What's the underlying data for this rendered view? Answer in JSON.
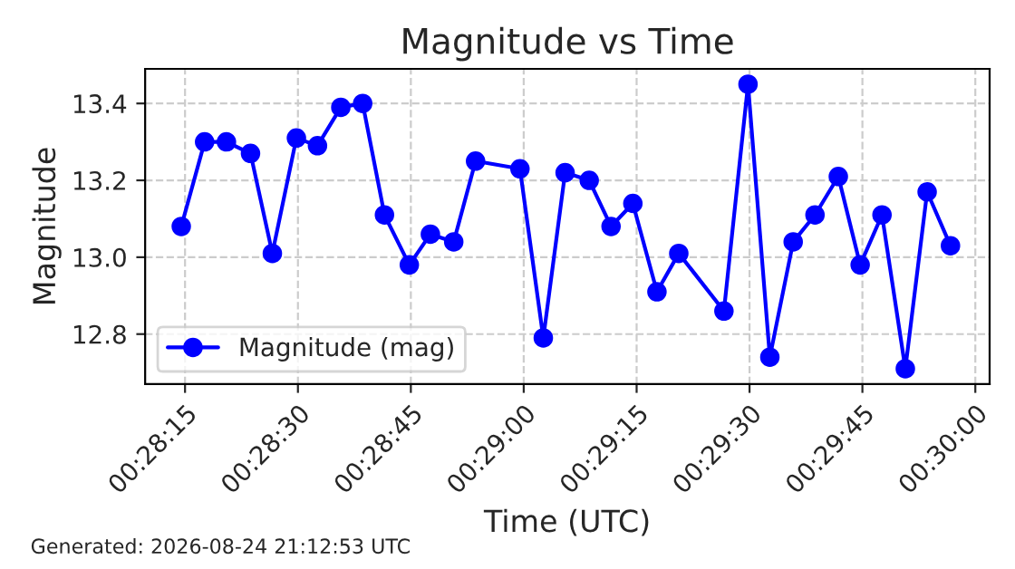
{
  "chart_data": {
    "type": "line",
    "title": "Magnitude vs Time",
    "xlabel": "Time (UTC)",
    "ylabel": "Magnitude",
    "x": [
      0.470694,
      0.471556,
      0.472361,
      0.47325,
      0.474056,
      0.474944,
      0.475722,
      0.476583,
      0.477389,
      0.478194,
      0.479111,
      0.479889,
      0.48075,
      0.481556,
      0.483194,
      0.484056,
      0.484861,
      0.48575,
      0.486556,
      0.487361,
      0.48825,
      0.489056,
      0.490722,
      0.491611,
      0.492417,
      0.493278,
      0.494083,
      0.494944,
      0.49575,
      0.496556,
      0.497417,
      0.498222,
      0.499083
    ],
    "series": [
      {
        "name": "Magnitude (mag)",
        "color": "#0000ff",
        "values": [
          13.08,
          13.3,
          13.3,
          13.27,
          13.01,
          13.31,
          13.29,
          13.39,
          13.4,
          13.11,
          12.98,
          13.06,
          13.04,
          13.25,
          13.23,
          12.79,
          13.22,
          13.2,
          13.08,
          13.14,
          12.91,
          13.01,
          12.86,
          13.45,
          12.74,
          13.04,
          13.11,
          13.21,
          12.98,
          13.11,
          12.71,
          13.17,
          13.03
        ]
      }
    ],
    "xlim": [
      0.469361,
      0.500528
    ],
    "xticks": [
      {
        "value": 0.470833,
        "label": "00:28:15"
      },
      {
        "value": 0.475,
        "label": "00:28:30"
      },
      {
        "value": 0.479167,
        "label": "00:28:45"
      },
      {
        "value": 0.483333,
        "label": "00:29:00"
      },
      {
        "value": 0.4875,
        "label": "00:29:15"
      },
      {
        "value": 0.491667,
        "label": "00:29:30"
      },
      {
        "value": 0.495833,
        "label": "00:29:45"
      },
      {
        "value": 0.5,
        "label": "00:30:00"
      }
    ],
    "ylim": [
      12.67,
      13.49
    ],
    "yticks": [
      {
        "value": 12.8,
        "label": "12.8"
      },
      {
        "value": 13.0,
        "label": "13.0"
      },
      {
        "value": 13.2,
        "label": "13.2"
      },
      {
        "value": 13.4,
        "label": "13.4"
      }
    ],
    "grid": true,
    "legend": "bottom left",
    "marker": "circle",
    "line_style": "solid",
    "annotations": [
      "Generated: 2026-08-24 21:12:53 UTC"
    ]
  }
}
